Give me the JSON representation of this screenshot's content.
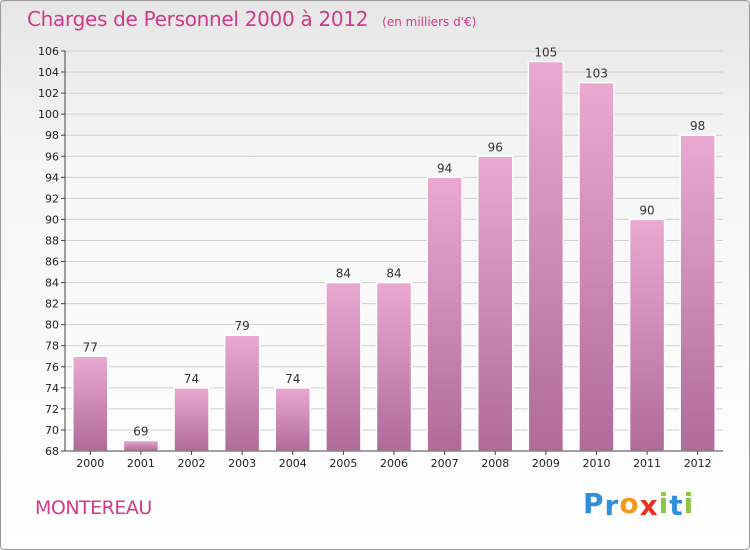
{
  "header": {
    "title": "Charges de Personnel 2000 à 2012",
    "subtitle": "(en milliers d'€)"
  },
  "footer": {
    "city": "MONTEREAU",
    "logo": {
      "text": "Proxiti",
      "letter_colors": [
        "#2f8fd8",
        "#2f8fd8",
        "#f29a1d",
        "#e8311f",
        "#8dc63f",
        "#2f8fd8",
        "#8dc63f"
      ]
    }
  },
  "colors": {
    "title": "#cf3a8a",
    "bar_light": "#e9a9d1",
    "bar_dark": "#b06b98",
    "grid": "#cfcfcf"
  },
  "chart_data": {
    "type": "bar",
    "title": "Charges de Personnel 2000 à 2012",
    "subtitle": "(en milliers d'€)",
    "categories": [
      "2000",
      "2001",
      "2002",
      "2003",
      "2004",
      "2005",
      "2006",
      "2007",
      "2008",
      "2009",
      "2010",
      "2011",
      "2012"
    ],
    "values": [
      77,
      69,
      74,
      79,
      74,
      84,
      84,
      94,
      96,
      105,
      103,
      90,
      98
    ],
    "value_labels": [
      "77",
      "69",
      "74",
      "79",
      "74",
      "84",
      "84",
      "94",
      "96",
      "105",
      "103",
      "90",
      "98"
    ],
    "yticks": [
      "68",
      "70",
      "72",
      "74",
      "76",
      "78",
      "80",
      "82",
      "84",
      "86",
      "88",
      "90",
      "92",
      "94",
      "96",
      "98",
      "100",
      "102",
      "104",
      "106"
    ],
    "ylim": [
      68,
      106
    ],
    "grid": true,
    "legend": "none"
  }
}
